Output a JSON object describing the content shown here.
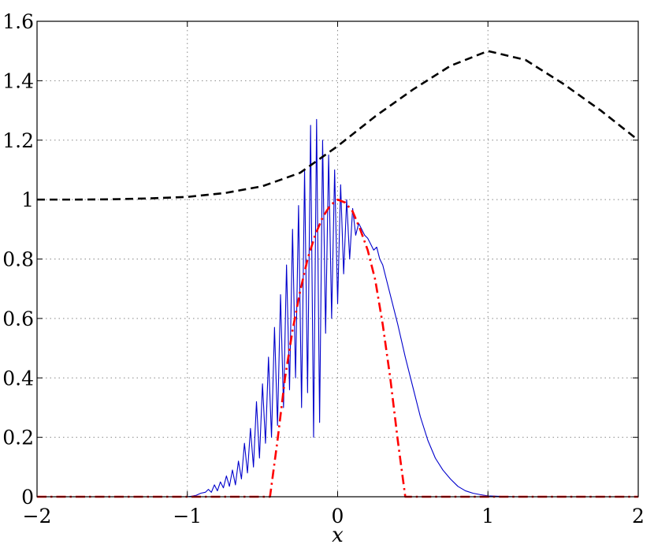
{
  "chart_data": {
    "type": "line",
    "title": "",
    "xlabel": "x",
    "ylabel": "",
    "xlim": [
      -2,
      2
    ],
    "ylim": [
      0,
      1.6
    ],
    "grid": true,
    "legend": "none",
    "x_ticks": [
      -2,
      -1,
      0,
      1,
      2
    ],
    "x_tick_labels": [
      "−2",
      "−1",
      "0",
      "1",
      "2"
    ],
    "y_ticks": [
      0,
      0.2,
      0.4,
      0.6,
      0.8,
      1,
      1.2,
      1.4,
      1.6
    ],
    "y_tick_labels": [
      "0",
      "0.2",
      "0.4",
      "0.6",
      "0.8",
      "1",
      "1.2",
      "1.4",
      "1.6"
    ],
    "colors": {
      "blue": "#0000cc",
      "red": "#ff0000",
      "black": "#000000",
      "grid": "#888888"
    },
    "series": [
      {
        "style": "dashed",
        "color": "#000000",
        "x": [
          -2.0,
          -1.75,
          -1.5,
          -1.25,
          -1.0,
          -0.75,
          -0.5,
          -0.25,
          0.0,
          0.25,
          0.5,
          0.75,
          1.0,
          1.25,
          1.5,
          1.75,
          2.0
        ],
        "y": [
          1.0,
          1.0,
          1.001,
          1.004,
          1.009,
          1.022,
          1.045,
          1.09,
          1.18,
          1.28,
          1.37,
          1.45,
          1.5,
          1.47,
          1.39,
          1.3,
          1.2
        ]
      },
      {
        "style": "dashdot",
        "color": "#ff0000",
        "x": [
          -2.0,
          -0.45,
          -0.4,
          -0.35,
          -0.3,
          -0.25,
          -0.2,
          -0.15,
          -0.1,
          -0.05,
          0.0,
          0.05,
          0.1,
          0.15,
          0.2,
          0.25,
          0.3,
          0.35,
          0.4,
          0.45,
          2.0
        ],
        "y": [
          0.0,
          0.0,
          0.19,
          0.4,
          0.56,
          0.69,
          0.8,
          0.88,
          0.94,
          0.98,
          1.0,
          0.99,
          0.96,
          0.9,
          0.83,
          0.73,
          0.58,
          0.4,
          0.19,
          0.0,
          0.0
        ]
      },
      {
        "style": "solid",
        "color": "#0000cc",
        "x": [
          -2.0,
          -1.0,
          -0.97,
          -0.94,
          -0.91,
          -0.88,
          -0.86,
          -0.84,
          -0.82,
          -0.8,
          -0.78,
          -0.76,
          -0.74,
          -0.72,
          -0.7,
          -0.68,
          -0.66,
          -0.64,
          -0.62,
          -0.6,
          -0.58,
          -0.56,
          -0.54,
          -0.52,
          -0.5,
          -0.48,
          -0.46,
          -0.44,
          -0.42,
          -0.4,
          -0.38,
          -0.36,
          -0.34,
          -0.32,
          -0.3,
          -0.28,
          -0.26,
          -0.24,
          -0.22,
          -0.2,
          -0.18,
          -0.16,
          -0.14,
          -0.12,
          -0.1,
          -0.08,
          -0.06,
          -0.04,
          -0.02,
          0.0,
          0.02,
          0.04,
          0.06,
          0.08,
          0.1,
          0.12,
          0.14,
          0.16,
          0.18,
          0.2,
          0.22,
          0.24,
          0.26,
          0.28,
          0.3,
          0.35,
          0.4,
          0.45,
          0.5,
          0.55,
          0.6,
          0.65,
          0.7,
          0.75,
          0.8,
          0.85,
          0.9,
          0.95,
          1.0,
          1.1,
          1.2,
          2.0
        ],
        "y": [
          0.0,
          0.0,
          0.002,
          0.005,
          0.012,
          0.015,
          0.025,
          0.015,
          0.04,
          0.02,
          0.05,
          0.03,
          0.07,
          0.035,
          0.09,
          0.04,
          0.12,
          0.06,
          0.18,
          0.08,
          0.23,
          0.1,
          0.32,
          0.13,
          0.38,
          0.18,
          0.47,
          0.2,
          0.57,
          0.24,
          0.68,
          0.3,
          0.78,
          0.36,
          0.9,
          0.4,
          0.98,
          0.3,
          1.1,
          0.35,
          1.25,
          0.2,
          1.27,
          0.25,
          1.2,
          0.55,
          1.15,
          0.6,
          1.1,
          0.65,
          1.05,
          0.75,
          1.0,
          0.8,
          0.97,
          0.88,
          0.92,
          0.9,
          0.88,
          0.87,
          0.85,
          0.83,
          0.84,
          0.8,
          0.78,
          0.68,
          0.58,
          0.47,
          0.37,
          0.27,
          0.19,
          0.13,
          0.09,
          0.06,
          0.035,
          0.02,
          0.012,
          0.007,
          0.003,
          0.001,
          0.0,
          0.0
        ]
      }
    ]
  }
}
